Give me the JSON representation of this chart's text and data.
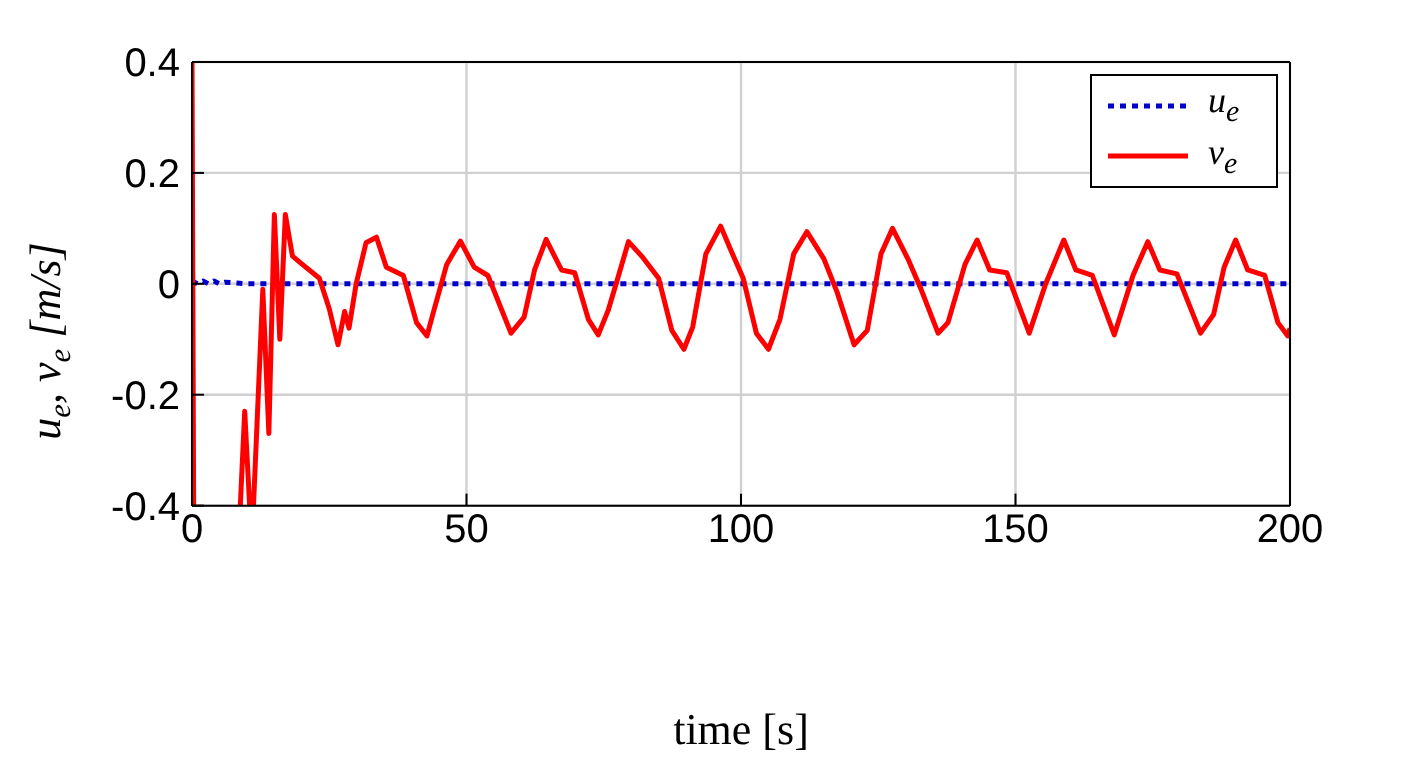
{
  "chart_data": {
    "type": "line",
    "xlabel": "time [s]",
    "ylabel": "u$_{e}$, v$_{e}$ [m/s]",
    "xlim": [
      0,
      200
    ],
    "xticks": [
      0,
      50,
      100,
      150,
      200
    ],
    "ylim": [
      -0.4,
      0.4
    ],
    "yticks": [
      -0.4,
      -0.2,
      0,
      0.2,
      0.4
    ],
    "grid": true,
    "legend": "top right",
    "marker": "none",
    "series": [
      {
        "name": "u$_{e}$",
        "color": "#0000cc",
        "line_style": "dotted",
        "x": [
          0,
          1,
          2,
          3,
          4,
          5,
          6,
          10,
          20,
          40,
          60,
          80,
          100,
          120,
          140,
          160,
          180,
          200
        ],
        "values": [
          0.005,
          0,
          0.005,
          0,
          0.005,
          0,
          0.003,
          0,
          0,
          0,
          0,
          0,
          0,
          0,
          0,
          0,
          0,
          0
        ]
      },
      {
        "name": "v$_{e}$",
        "color": "#ff0000",
        "line_style": "solid",
        "x": [
          0,
          0.3,
          0.4,
          8.8,
          9.6,
          10.5,
          11.2,
          12.9,
          14,
          15,
          16,
          17,
          18.3,
          20.1,
          23.2,
          25,
          26.6,
          27.8,
          28.6,
          29.9,
          31.7,
          33.6,
          35.4,
          38.5,
          40.9,
          42.8,
          44,
          46.4,
          48.9,
          51.4,
          53.9,
          58.1,
          60.5,
          62.4,
          64.5,
          67.3,
          69.7,
          72.2,
          74,
          75.8,
          77.7,
          79.5,
          81.9,
          85,
          87.4,
          89.6,
          91.2,
          93.6,
          96.3,
          98,
          100.4,
          102.8,
          105,
          107.1,
          109.6,
          112,
          115.1,
          117.5,
          120.6,
          123,
          125.5,
          127.6,
          130.4,
          132.8,
          135.9,
          137.7,
          140.8,
          143,
          145.3,
          148.4,
          152.5,
          155.5,
          158.8,
          161,
          164,
          168,
          171.4,
          174.1,
          176.3,
          179.4,
          183.7,
          186.1,
          188,
          190.1,
          192.3,
          195.4,
          197.8,
          199.6,
          200
        ],
        "values": [
          0.4,
          -0.4,
          null,
          -0.4,
          -0.23,
          -0.4,
          -0.4,
          -0.01,
          -0.27,
          0.125,
          -0.1,
          0.125,
          0.05,
          0.035,
          0.01,
          -0.045,
          -0.11,
          -0.05,
          -0.08,
          0,
          0.074,
          0.084,
          0.03,
          0.015,
          -0.07,
          -0.094,
          -0.05,
          0.035,
          0.077,
          0.03,
          0.015,
          -0.089,
          -0.06,
          0.025,
          0.08,
          0.025,
          0.02,
          -0.064,
          -0.092,
          -0.048,
          0.015,
          0.076,
          0.05,
          0.01,
          -0.084,
          -0.118,
          -0.078,
          0.054,
          0.104,
          0.064,
          0.01,
          -0.089,
          -0.118,
          -0.064,
          0.054,
          0.094,
          0.045,
          -0.015,
          -0.11,
          -0.084,
          0.054,
          0.1,
          0.045,
          -0.01,
          -0.089,
          -0.07,
          0.035,
          0.079,
          0.025,
          0.02,
          -0.089,
          0,
          0.079,
          0.025,
          0.015,
          -0.092,
          0.015,
          0.076,
          0.025,
          0.018,
          -0.089,
          -0.055,
          0.03,
          0.079,
          0.025,
          0.015,
          -0.07,
          -0.094,
          -0.08
        ]
      }
    ]
  }
}
